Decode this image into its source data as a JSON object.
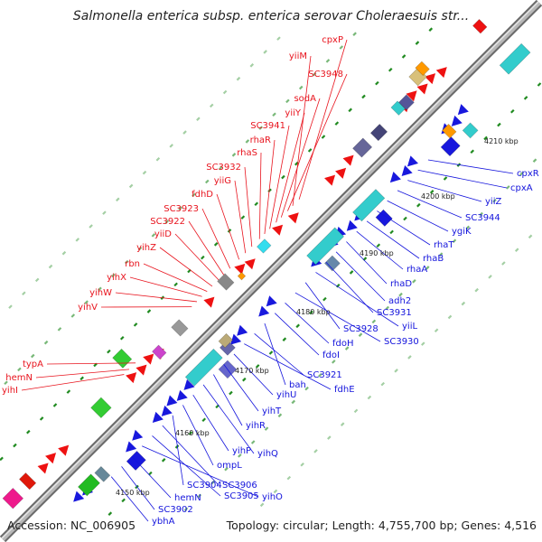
{
  "title": "Salmonella enterica subsp. enterica serovar Choleraesuis str...",
  "accession": "Accession: NC_006905",
  "topology": "Topology: circular; Length: 4,755,700 bp; Genes: 4,516",
  "colors": {
    "forward_label": "#e8141e",
    "reverse_label": "#1414dc",
    "backbone": "#888888",
    "tick": "#1f8a1f"
  },
  "kbp_ticks": [
    "4150 kbp",
    "4160 kbp",
    "4170 kbp",
    "4180 kbp",
    "4190 kbp",
    "4200 kbp",
    "4210 kbp"
  ],
  "forward_genes": [
    "cpxP",
    "yiiM",
    "SC3948",
    "sodA",
    "yiiY",
    "SC3941",
    "rhaR",
    "rhaS",
    "SC3932",
    "yiiG",
    "fdhD",
    "SC3923",
    "SC3922",
    "yiiD",
    "yihZ",
    "rbn",
    "yihX",
    "yihW",
    "yihV",
    "typA",
    "hemN",
    "yihI"
  ],
  "reverse_genes": [
    "cpxR",
    "cpxA",
    "yiiZ",
    "SC3944",
    "ygiK",
    "rhaT",
    "rhaB",
    "rhaA",
    "rhaD",
    "adh2",
    "SC3931",
    "yiiL",
    "SC3928",
    "SC3930",
    "fdoH",
    "fdoI",
    "bah",
    "SC3921",
    "fdhE",
    "yihU",
    "yihT",
    "yihR",
    "yihQ",
    "yihP",
    "ompL",
    "SC3904",
    "SC3906",
    "SC3905",
    "yihO",
    "hemN",
    "SC3902",
    "ybhA"
  ]
}
